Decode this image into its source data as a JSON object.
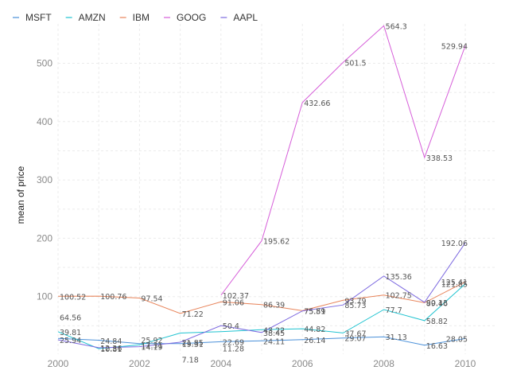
{
  "chart_data": {
    "type": "line",
    "xlabel": "",
    "ylabel": "mean of price",
    "x": [
      2000,
      2001,
      2002,
      2003,
      2004,
      2005,
      2006,
      2007,
      2008,
      2009,
      2010
    ],
    "x_ticks": [
      "2000",
      "2002",
      "2004",
      "2006",
      "2008",
      "2010"
    ],
    "y_ticks": [
      "100",
      "200",
      "300",
      "400",
      "500"
    ],
    "xlim": [
      2000,
      2010
    ],
    "ylim": [
      0,
      550
    ],
    "grid": true,
    "legend_position": "top-left",
    "series": [
      {
        "name": "MSFT",
        "color": "#4a90d9",
        "values": [
          28.2,
          25.2,
          19.5,
          19.31,
          22.69,
          24.11,
          26.14,
          29.07,
          31.13,
          16.63,
          28.05
        ],
        "labels": [
          null,
          null,
          null,
          "19.31",
          "22.69",
          "24.11",
          "26.14",
          "29.07",
          "31.13",
          "16.63",
          "28.05"
        ]
      },
      {
        "name": "AMZN",
        "color": "#1fc3d0",
        "values": [
          39.81,
          10.81,
          17.31,
          37.5,
          40.0,
          43.22,
          44.82,
          37.67,
          77.7,
          58.82,
          121.85
        ],
        "labels": [
          "39.81",
          "10.81",
          "17.31",
          null,
          null,
          "43.22",
          "44.82",
          "37.67",
          "77.7",
          "58.82",
          "121.85"
        ]
      },
      {
        "name": "IBM",
        "color": "#e8845a",
        "values": [
          100.52,
          100.76,
          97.54,
          71.22,
          91.06,
          86.39,
          75.89,
          93.79,
          102.75,
          89.46,
          125.41
        ],
        "labels": [
          "100.52",
          "100.76",
          "97.54",
          "71.22",
          "91.06",
          "86.39",
          "75.89",
          "93.79",
          "102.75",
          "89.46",
          "125.41"
        ]
      },
      {
        "name": "GOOG",
        "color": "#d65ed9",
        "values": [
          null,
          null,
          null,
          null,
          102.37,
          195.62,
          432.66,
          501.5,
          564.3,
          338.53,
          529.94
        ],
        "labels": [
          null,
          null,
          null,
          null,
          "102.37",
          "195.62",
          "432.66",
          "501.5",
          "564.3",
          "338.53",
          "529.94"
        ]
      },
      {
        "name": "AAPL",
        "color": "#7d6ae0",
        "values": [
          25.94,
          12.36,
          14.19,
          21.85,
          50.4,
          38.45,
          75.51,
          85.73,
          135.36,
          90.13,
          192.06
        ],
        "labels": [
          "25.94",
          "12.36",
          "14.19",
          "21.85",
          "50.4",
          "38.45",
          "75.51",
          "85.73",
          "135.36",
          "90.13",
          "192.06"
        ]
      }
    ],
    "extra_labels": [
      "64.56",
      "24.84",
      "25.92",
      "7.18",
      "11.28"
    ]
  }
}
